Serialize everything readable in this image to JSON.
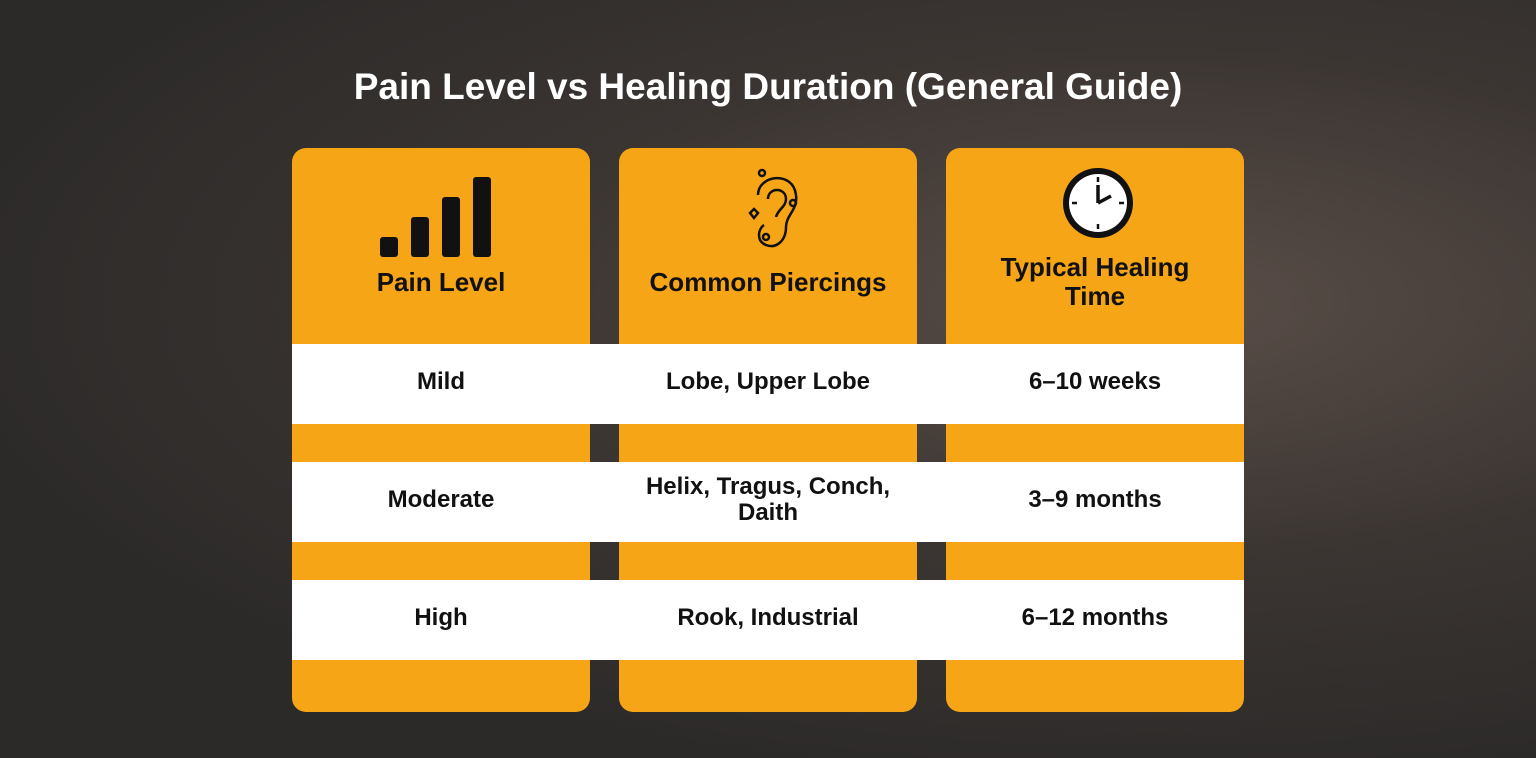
{
  "title": "Pain Level vs Healing Duration (General Guide)",
  "table": {
    "header": [
      "Pain Level",
      "Common Piercings",
      "Typical Healing Time"
    ],
    "rows": [
      [
        "Mild",
        "Lobe, Upper Lobe",
        "6–10 weeks"
      ],
      [
        "Moderate",
        "Helix, Tragus, Conch, Daith",
        "3–9 months"
      ],
      [
        "High",
        "Rook, Industrial",
        "6–12 months"
      ]
    ]
  }
}
